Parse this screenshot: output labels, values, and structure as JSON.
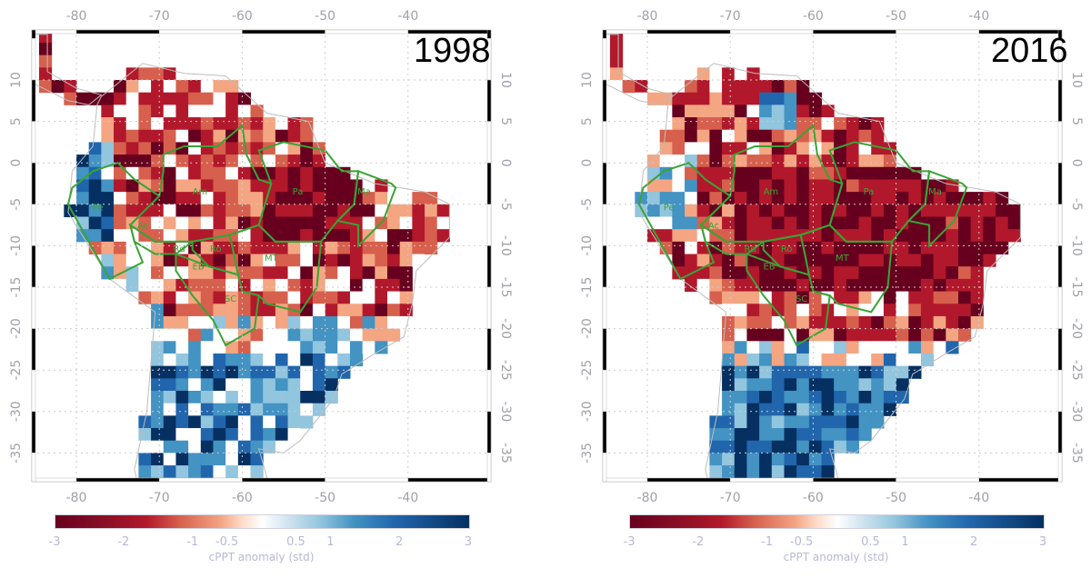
{
  "panels": [
    {
      "year": "1998",
      "scenario": "el-nino-1998"
    },
    {
      "year": "2016",
      "scenario": "el-nino-2016"
    }
  ],
  "axes": {
    "lon_ticks": [
      "-80",
      "-70",
      "-60",
      "-50",
      "-40"
    ],
    "lat_ticks": [
      "10",
      "5",
      "0",
      "-5",
      "-10",
      "-15",
      "-20",
      "-25",
      "-30",
      "-35"
    ]
  },
  "regions": [
    "Am",
    "Pa",
    "Ma",
    "Pe",
    "Ac",
    "Rd",
    "Ro",
    "EB",
    "MT",
    "SC"
  ],
  "colorbar": {
    "title": "cPPT anomaly (std)",
    "ticks": [
      "-3",
      "-2",
      "-1",
      "-0.5",
      "0.5",
      "1",
      "2",
      "3"
    ],
    "colors": [
      "#67001f",
      "#b2182b",
      "#d6604d",
      "#f4a582",
      "#fddbc7",
      "#ffffff",
      "#d1e5f0",
      "#92c5de",
      "#4393c3",
      "#2166ac",
      "#053061"
    ]
  },
  "colors": {
    "region_outline": "#3aa336",
    "coast": "#bdbdbd",
    "label": "#b8b8d8"
  }
}
